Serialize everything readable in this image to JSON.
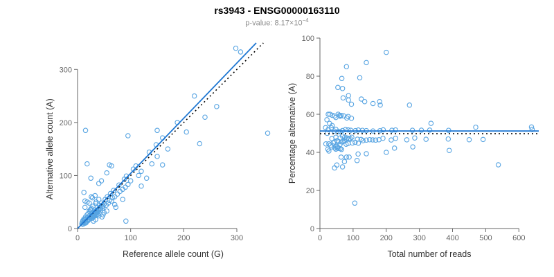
{
  "title": "rs3943 - ENSG00000163110",
  "subtitle": {
    "label": "p-value: ",
    "base": "8.17×10",
    "exponent": "−4"
  },
  "colors": {
    "points": "#57a4e2",
    "fit": "#1d76d2",
    "reference": "#000000",
    "axis": "#666666",
    "tick_text": "#666666",
    "axis_title": "#333333",
    "title": "#000000",
    "subtitle": "#8c8c8c"
  },
  "chart_data": [
    {
      "type": "scatter",
      "xlabel": "Reference allele count (G)",
      "ylabel": "Alternative allele count (A)",
      "xlim": [
        0,
        360
      ],
      "ylim": [
        0,
        350
      ],
      "xticks": [
        0,
        100,
        200,
        300
      ],
      "yticks": [
        0,
        100,
        200,
        300
      ],
      "grid": false,
      "legend": "none",
      "fit_line": {
        "slope": 1.04,
        "intercept": 0,
        "style": "solid",
        "color": "blue"
      },
      "identity_line": {
        "slope": 1,
        "intercept": 0,
        "style": "dotted",
        "color": "black"
      },
      "points_ref_alt": [
        [
          8,
          9
        ],
        [
          10,
          8
        ],
        [
          12,
          13
        ],
        [
          9,
          12
        ],
        [
          14,
          10
        ],
        [
          11,
          11
        ],
        [
          13,
          16
        ],
        [
          15,
          12
        ],
        [
          16,
          18
        ],
        [
          18,
          14
        ],
        [
          17,
          20
        ],
        [
          19,
          17
        ],
        [
          20,
          15
        ],
        [
          21,
          22
        ],
        [
          22,
          18
        ],
        [
          23,
          25
        ],
        [
          24,
          20
        ],
        [
          25,
          23
        ],
        [
          26,
          19
        ],
        [
          27,
          28
        ],
        [
          28,
          24
        ],
        [
          29,
          22
        ],
        [
          30,
          31
        ],
        [
          31,
          26
        ],
        [
          32,
          29
        ],
        [
          33,
          35
        ],
        [
          34,
          27
        ],
        [
          35,
          33
        ],
        [
          36,
          30
        ],
        [
          37,
          40
        ],
        [
          38,
          32
        ],
        [
          39,
          36
        ],
        [
          40,
          34
        ],
        [
          41,
          44
        ],
        [
          42,
          37
        ],
        [
          43,
          39
        ],
        [
          44,
          35
        ],
        [
          45,
          48
        ],
        [
          46,
          41
        ],
        [
          47,
          38
        ],
        [
          20,
          28
        ],
        [
          22,
          33
        ],
        [
          25,
          36
        ],
        [
          28,
          20
        ],
        [
          30,
          22
        ],
        [
          33,
          24
        ],
        [
          35,
          50
        ],
        [
          38,
          27
        ],
        [
          40,
          55
        ],
        [
          18,
          26
        ],
        [
          15,
          22
        ],
        [
          12,
          18
        ],
        [
          10,
          15
        ],
        [
          24,
          35
        ],
        [
          26,
          38
        ],
        [
          29,
          42
        ],
        [
          31,
          23
        ],
        [
          34,
          47
        ],
        [
          36,
          26
        ],
        [
          16,
          11
        ],
        [
          48,
          43
        ],
        [
          50,
          46
        ],
        [
          52,
          55
        ],
        [
          54,
          44
        ],
        [
          56,
          60
        ],
        [
          58,
          48
        ],
        [
          60,
          53
        ],
        [
          62,
          66
        ],
        [
          64,
          52
        ],
        [
          66,
          58
        ],
        [
          30,
          14
        ],
        [
          34,
          17
        ],
        [
          46,
          22
        ],
        [
          48,
          26
        ],
        [
          28,
          58
        ],
        [
          33,
          62
        ],
        [
          26,
          60
        ],
        [
          22,
          48
        ],
        [
          40,
          85
        ],
        [
          55,
          105
        ],
        [
          14,
          40
        ],
        [
          18,
          50
        ],
        [
          50,
          30
        ],
        [
          40,
          24
        ],
        [
          55,
          33
        ],
        [
          72,
          40
        ],
        [
          64,
          118
        ],
        [
          45,
          90
        ],
        [
          60,
          120
        ],
        [
          25,
          95
        ],
        [
          12,
          68
        ],
        [
          14,
          52
        ],
        [
          70,
          45
        ],
        [
          85,
          55
        ],
        [
          68,
          72
        ],
        [
          70,
          60
        ],
        [
          75,
          65
        ],
        [
          78,
          82
        ],
        [
          80,
          70
        ],
        [
          85,
          74
        ],
        [
          88,
          93
        ],
        [
          90,
          78
        ],
        [
          92,
          99
        ],
        [
          95,
          83
        ],
        [
          100,
          90
        ],
        [
          105,
          112
        ],
        [
          110,
          118
        ],
        [
          115,
          100
        ],
        [
          120,
          108
        ],
        [
          120,
          80
        ],
        [
          130,
          95
        ],
        [
          135,
          144
        ],
        [
          140,
          122
        ],
        [
          150,
          136
        ],
        [
          148,
          158
        ],
        [
          160,
          171
        ],
        [
          170,
          150
        ],
        [
          160,
          120
        ],
        [
          150,
          185
        ],
        [
          188,
          200
        ],
        [
          205,
          182
        ],
        [
          220,
          250
        ],
        [
          230,
          160
        ],
        [
          240,
          210
        ],
        [
          262,
          230
        ],
        [
          95,
          175
        ],
        [
          15,
          185
        ],
        [
          18,
          122
        ],
        [
          91,
          14
        ],
        [
          358,
          180
        ],
        [
          307,
          333
        ],
        [
          298,
          340
        ]
      ]
    },
    {
      "type": "scatter",
      "xlabel": "Total number of reads",
      "ylabel": "Percentage alternative (A)",
      "xlim": [
        0,
        660
      ],
      "ylim": [
        0,
        100
      ],
      "xticks": [
        0,
        100,
        200,
        300,
        400,
        500,
        600
      ],
      "yticks": [
        0,
        20,
        40,
        60,
        80,
        100
      ],
      "grid": false,
      "legend": "none",
      "points_derived": "x = ref + alt, y = 100 * alt / (ref + alt), from chart_data[0].points_ref_alt",
      "fit_line": {
        "y": 51.2,
        "style": "solid",
        "color": "blue"
      },
      "expected_line": {
        "y": 49.8,
        "style": "dotted",
        "color": "black"
      }
    }
  ]
}
